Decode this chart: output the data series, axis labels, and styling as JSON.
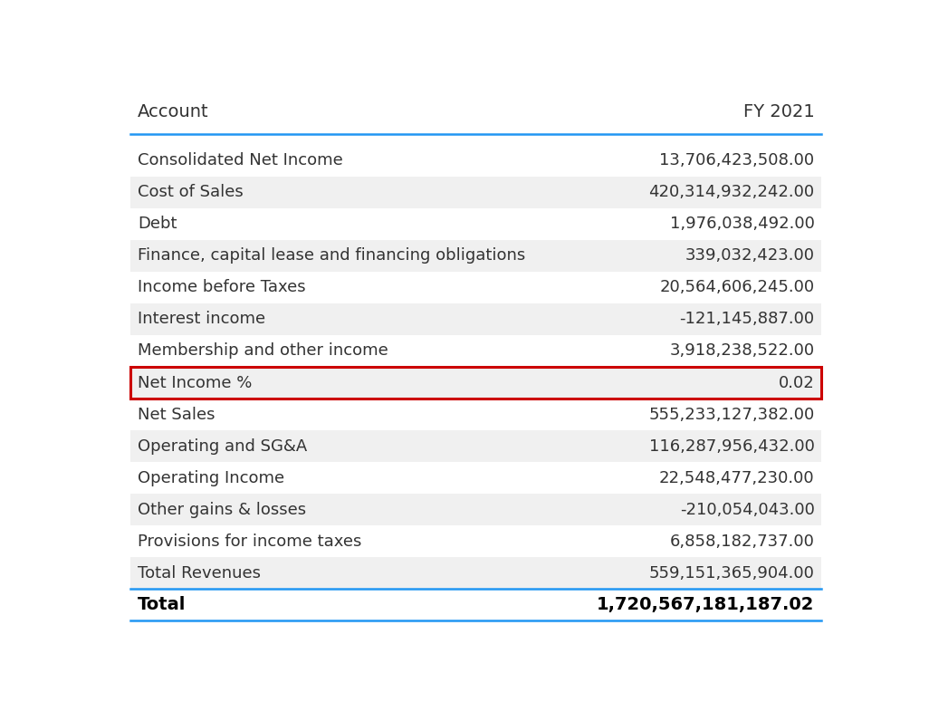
{
  "header_col1": "Account",
  "header_col2": "FY 2021",
  "rows": [
    {
      "account": "Consolidated Net Income",
      "value": "13,706,423,508.00",
      "shaded": false,
      "highlight": false
    },
    {
      "account": "Cost of Sales",
      "value": "420,314,932,242.00",
      "shaded": true,
      "highlight": false
    },
    {
      "account": "Debt",
      "value": "1,976,038,492.00",
      "shaded": false,
      "highlight": false
    },
    {
      "account": "Finance, capital lease and financing obligations",
      "value": "339,032,423.00",
      "shaded": true,
      "highlight": false
    },
    {
      "account": "Income before Taxes",
      "value": "20,564,606,245.00",
      "shaded": false,
      "highlight": false
    },
    {
      "account": "Interest income",
      "value": "-121,145,887.00",
      "shaded": true,
      "highlight": false
    },
    {
      "account": "Membership and other income",
      "value": "3,918,238,522.00",
      "shaded": false,
      "highlight": false
    },
    {
      "account": "Net Income %",
      "value": "0.02",
      "shaded": true,
      "highlight": true
    },
    {
      "account": "Net Sales",
      "value": "555,233,127,382.00",
      "shaded": false,
      "highlight": false
    },
    {
      "account": "Operating and SG&A",
      "value": "116,287,956,432.00",
      "shaded": true,
      "highlight": false
    },
    {
      "account": "Operating Income",
      "value": "22,548,477,230.00",
      "shaded": false,
      "highlight": false
    },
    {
      "account": "Other gains & losses",
      "value": "-210,054,043.00",
      "shaded": true,
      "highlight": false
    },
    {
      "account": "Provisions for income taxes",
      "value": "6,858,182,737.00",
      "shaded": false,
      "highlight": false
    },
    {
      "account": "Total Revenues",
      "value": "559,151,365,904.00",
      "shaded": true,
      "highlight": false
    }
  ],
  "total_row": {
    "account": "Total",
    "value": "1,720,567,181,187.02"
  },
  "bg_color": "#ffffff",
  "shaded_color": "#f0f0f0",
  "header_text_color": "#333333",
  "row_text_color": "#333333",
  "total_text_color": "#000000",
  "highlight_border_color": "#cc0000",
  "header_line_color": "#2196F3",
  "total_line_color": "#2196F3",
  "font_size": 13,
  "header_font_size": 14
}
